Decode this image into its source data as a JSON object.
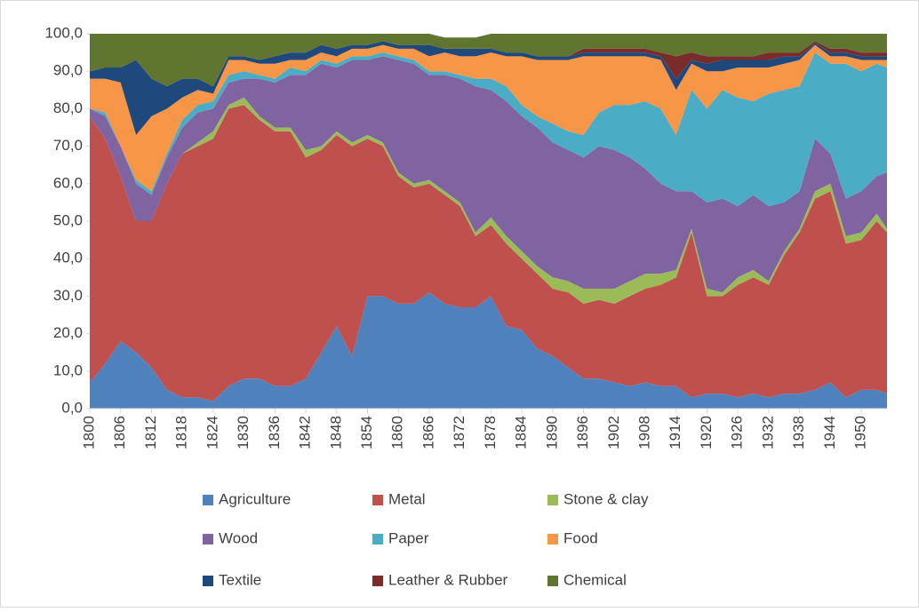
{
  "chart_data": {
    "type": "stacked-area",
    "x": [
      1800,
      1803,
      1806,
      1809,
      1812,
      1815,
      1818,
      1821,
      1824,
      1827,
      1830,
      1833,
      1836,
      1839,
      1842,
      1845,
      1848,
      1851,
      1854,
      1857,
      1860,
      1863,
      1866,
      1869,
      1872,
      1875,
      1878,
      1881,
      1884,
      1887,
      1890,
      1893,
      1896,
      1899,
      1902,
      1905,
      1908,
      1911,
      1914,
      1917,
      1920,
      1923,
      1926,
      1929,
      1932,
      1935,
      1938,
      1941,
      1944,
      1947,
      1950,
      1953,
      1955
    ],
    "xlim": [
      1800,
      1955
    ],
    "xticks": [
      1800,
      1806,
      1812,
      1818,
      1824,
      1830,
      1836,
      1842,
      1848,
      1854,
      1860,
      1866,
      1872,
      1878,
      1884,
      1890,
      1896,
      1902,
      1908,
      1914,
      1920,
      1926,
      1932,
      1938,
      1944,
      1950
    ],
    "ylim": [
      0,
      100
    ],
    "yticks": [
      {
        "value": 0,
        "label": "0,0"
      },
      {
        "value": 10,
        "label": "10,0"
      },
      {
        "value": 20,
        "label": "20,0"
      },
      {
        "value": 30,
        "label": "30,0"
      },
      {
        "value": 40,
        "label": "40,0"
      },
      {
        "value": 50,
        "label": "50,0"
      },
      {
        "value": 60,
        "label": "60,0"
      },
      {
        "value": 70,
        "label": "70,0"
      },
      {
        "value": 80,
        "label": "80,0"
      },
      {
        "value": 90,
        "label": "90,0"
      },
      {
        "value": 100,
        "label": "100,0"
      }
    ],
    "series": [
      {
        "name": "Agriculture",
        "color": "#4f81bd",
        "values": [
          7,
          12,
          18,
          15,
          11,
          5,
          3,
          3,
          2,
          6,
          8,
          8,
          6,
          6,
          8,
          15,
          22,
          14,
          30,
          30,
          28,
          28,
          31,
          28,
          27,
          27,
          30,
          22,
          21,
          16,
          14,
          11,
          8,
          8,
          7,
          6,
          7,
          6,
          6,
          3,
          4,
          4,
          3,
          4,
          3,
          4,
          4,
          5,
          7,
          3,
          5,
          5,
          4
        ]
      },
      {
        "name": "Metal",
        "color": "#c0504d",
        "values": [
          71,
          60,
          44,
          35,
          39,
          55,
          65,
          67,
          70,
          74,
          73,
          69,
          68,
          68,
          59,
          54,
          51,
          56,
          42,
          40,
          34,
          31,
          29,
          29,
          27,
          19,
          19,
          22,
          19,
          20,
          18,
          20,
          20,
          21,
          21,
          24,
          25,
          27,
          29,
          44,
          26,
          26,
          30,
          31,
          30,
          37,
          43,
          51,
          51,
          41,
          40,
          45,
          43
        ]
      },
      {
        "name": "Stone & clay",
        "color": "#9bbb59",
        "values": [
          0,
          0,
          0,
          0,
          0,
          0,
          0,
          1,
          2,
          1,
          2,
          1,
          1,
          1,
          2,
          1,
          1,
          1,
          1,
          1,
          1,
          1,
          1,
          1,
          1,
          1,
          2,
          2,
          2,
          2,
          3,
          3,
          4,
          3,
          4,
          4,
          4,
          3,
          2,
          1,
          2,
          1,
          2,
          2,
          1,
          1,
          1,
          2,
          2,
          2,
          2,
          2,
          1
        ]
      },
      {
        "name": "Wood",
        "color": "#8064a2",
        "values": [
          2,
          6,
          8,
          10,
          7,
          7,
          7,
          8,
          6,
          6,
          5,
          10,
          12,
          14,
          20,
          22,
          17,
          22,
          20,
          23,
          30,
          32,
          28,
          31,
          33,
          39,
          34,
          36,
          36,
          37,
          36,
          35,
          35,
          38,
          37,
          33,
          28,
          24,
          21,
          10,
          23,
          25,
          19,
          20,
          20,
          13,
          10,
          14,
          8,
          10,
          11,
          10,
          15
        ]
      },
      {
        "name": "Paper",
        "color": "#4bacc6",
        "values": [
          0,
          1,
          0,
          1,
          1,
          1,
          2,
          2,
          2,
          2,
          2,
          1,
          1,
          2,
          1,
          1,
          1,
          1,
          1,
          1,
          1,
          1,
          1,
          1,
          1,
          2,
          3,
          4,
          3,
          3,
          5,
          5,
          6,
          9,
          12,
          14,
          18,
          20,
          15,
          27,
          25,
          29,
          29,
          25,
          30,
          30,
          28,
          23,
          24,
          36,
          32,
          30,
          28
        ]
      },
      {
        "name": "Food",
        "color": "#f79646",
        "values": [
          8,
          9,
          17,
          12,
          20,
          12,
          6,
          4,
          2,
          4,
          3,
          3,
          4,
          2,
          3,
          2,
          2,
          2,
          2,
          2,
          2,
          3,
          4,
          5,
          5,
          6,
          7,
          8,
          13,
          15,
          17,
          19,
          21,
          15,
          13,
          13,
          12,
          13,
          12,
          7,
          10,
          5,
          8,
          9,
          7,
          7,
          7,
          2,
          2,
          2,
          3,
          1,
          2
        ]
      },
      {
        "name": "Textile",
        "color": "#1f497d",
        "values": [
          2,
          3,
          4,
          20,
          10,
          6,
          5,
          3,
          2,
          1,
          1,
          1,
          2,
          2,
          2,
          2,
          2,
          1,
          1,
          1,
          1,
          1,
          3,
          1,
          2,
          2,
          1,
          1,
          1,
          1,
          1,
          1,
          1,
          1,
          1,
          1,
          1,
          1,
          3,
          1,
          2,
          3,
          2,
          2,
          2,
          2,
          1,
          0.5,
          1,
          1,
          1,
          1,
          1
        ]
      },
      {
        "name": "Leather & Rubber",
        "color": "#7b2c2a",
        "values": [
          0,
          0,
          0,
          0,
          0,
          0,
          0,
          0,
          0,
          0,
          0,
          0,
          0,
          0,
          0,
          0,
          0,
          0,
          0,
          0,
          0,
          0,
          0,
          0,
          0,
          0,
          0,
          0,
          0,
          0,
          0,
          0,
          1,
          1,
          1,
          1,
          1,
          1,
          6,
          2,
          2,
          1,
          1,
          1,
          2,
          1,
          1,
          0.5,
          1,
          1,
          1,
          1,
          1
        ]
      },
      {
        "name": "Chemical",
        "color": "#5f7530",
        "values": [
          10,
          9,
          9,
          7,
          12,
          14,
          12,
          12,
          14,
          6,
          6,
          7,
          6,
          5,
          5,
          3,
          4,
          3,
          3,
          2,
          3,
          3,
          3,
          3,
          3,
          3,
          4,
          5,
          5,
          6,
          6,
          6,
          4,
          4,
          4,
          4,
          4,
          5,
          6,
          5,
          6,
          6,
          6,
          6,
          5,
          5,
          5,
          2,
          4,
          4,
          5,
          5,
          5
        ]
      }
    ]
  }
}
